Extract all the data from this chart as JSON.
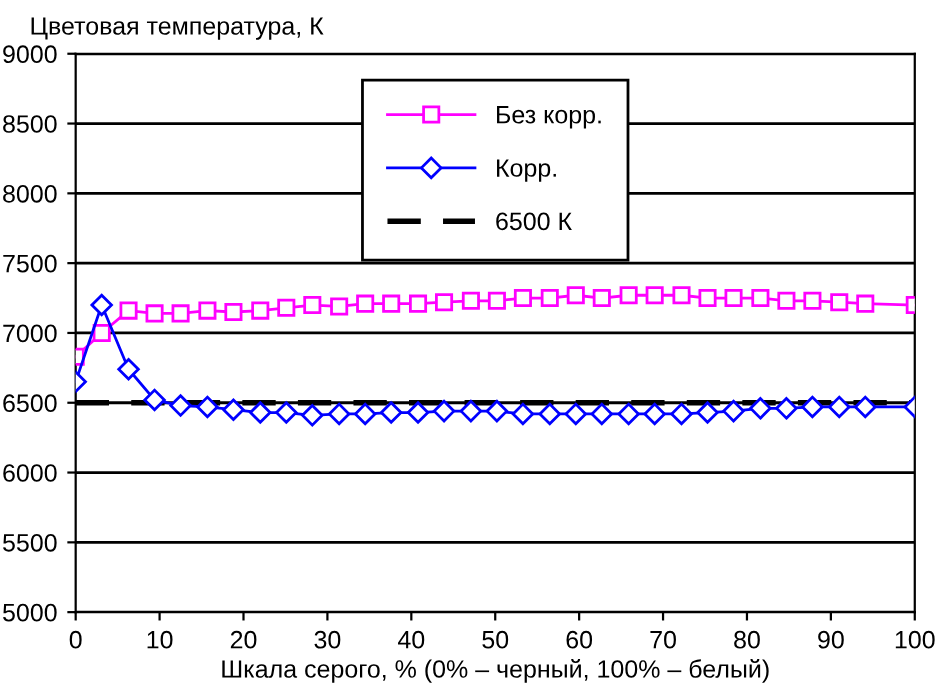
{
  "chart_data": {
    "type": "line",
    "ylabel": "Цветовая температура, К",
    "xlabel": "Шкала серого, % (0% – черный, 100% – белый)",
    "x": [
      0,
      3.1,
      6.3,
      9.4,
      12.5,
      15.7,
      18.8,
      22,
      25.1,
      28.2,
      31.4,
      34.5,
      37.6,
      40.8,
      43.9,
      47.1,
      50.2,
      53.3,
      56.5,
      59.6,
      62.7,
      65.9,
      69,
      72.2,
      75.3,
      78.4,
      81.6,
      84.7,
      87.8,
      91,
      94.1,
      100
    ],
    "series": [
      {
        "name": "Без корр.",
        "color": "#ff00ff",
        "marker": "square",
        "values": [
          6830,
          7000,
          7160,
          7140,
          7140,
          7160,
          7150,
          7160,
          7180,
          7200,
          7190,
          7210,
          7210,
          7210,
          7220,
          7230,
          7230,
          7250,
          7250,
          7270,
          7250,
          7270,
          7270,
          7270,
          7250,
          7250,
          7250,
          7230,
          7230,
          7220,
          7210,
          7200
        ]
      },
      {
        "name": "Корр.",
        "color": "#0000ff",
        "marker": "diamond",
        "values": [
          6650,
          7200,
          6740,
          6520,
          6480,
          6470,
          6450,
          6430,
          6430,
          6410,
          6420,
          6420,
          6430,
          6430,
          6440,
          6440,
          6440,
          6420,
          6420,
          6420,
          6420,
          6420,
          6420,
          6420,
          6430,
          6440,
          6460,
          6460,
          6470,
          6470,
          6470,
          6470
        ]
      }
    ],
    "ref_lines": [
      {
        "axis": "y",
        "value": 6500,
        "label": "6500 К",
        "color": "#000000",
        "line_style": "dashed"
      }
    ],
    "xlim": [
      0,
      100
    ],
    "xticks": [
      0,
      10,
      20,
      30,
      40,
      50,
      60,
      70,
      80,
      90,
      100
    ],
    "ylim": [
      5000,
      9000
    ],
    "yticks": [
      5000,
      5500,
      6000,
      6500,
      7000,
      7500,
      8000,
      8500,
      9000
    ],
    "grid": "y",
    "legend": "top"
  }
}
